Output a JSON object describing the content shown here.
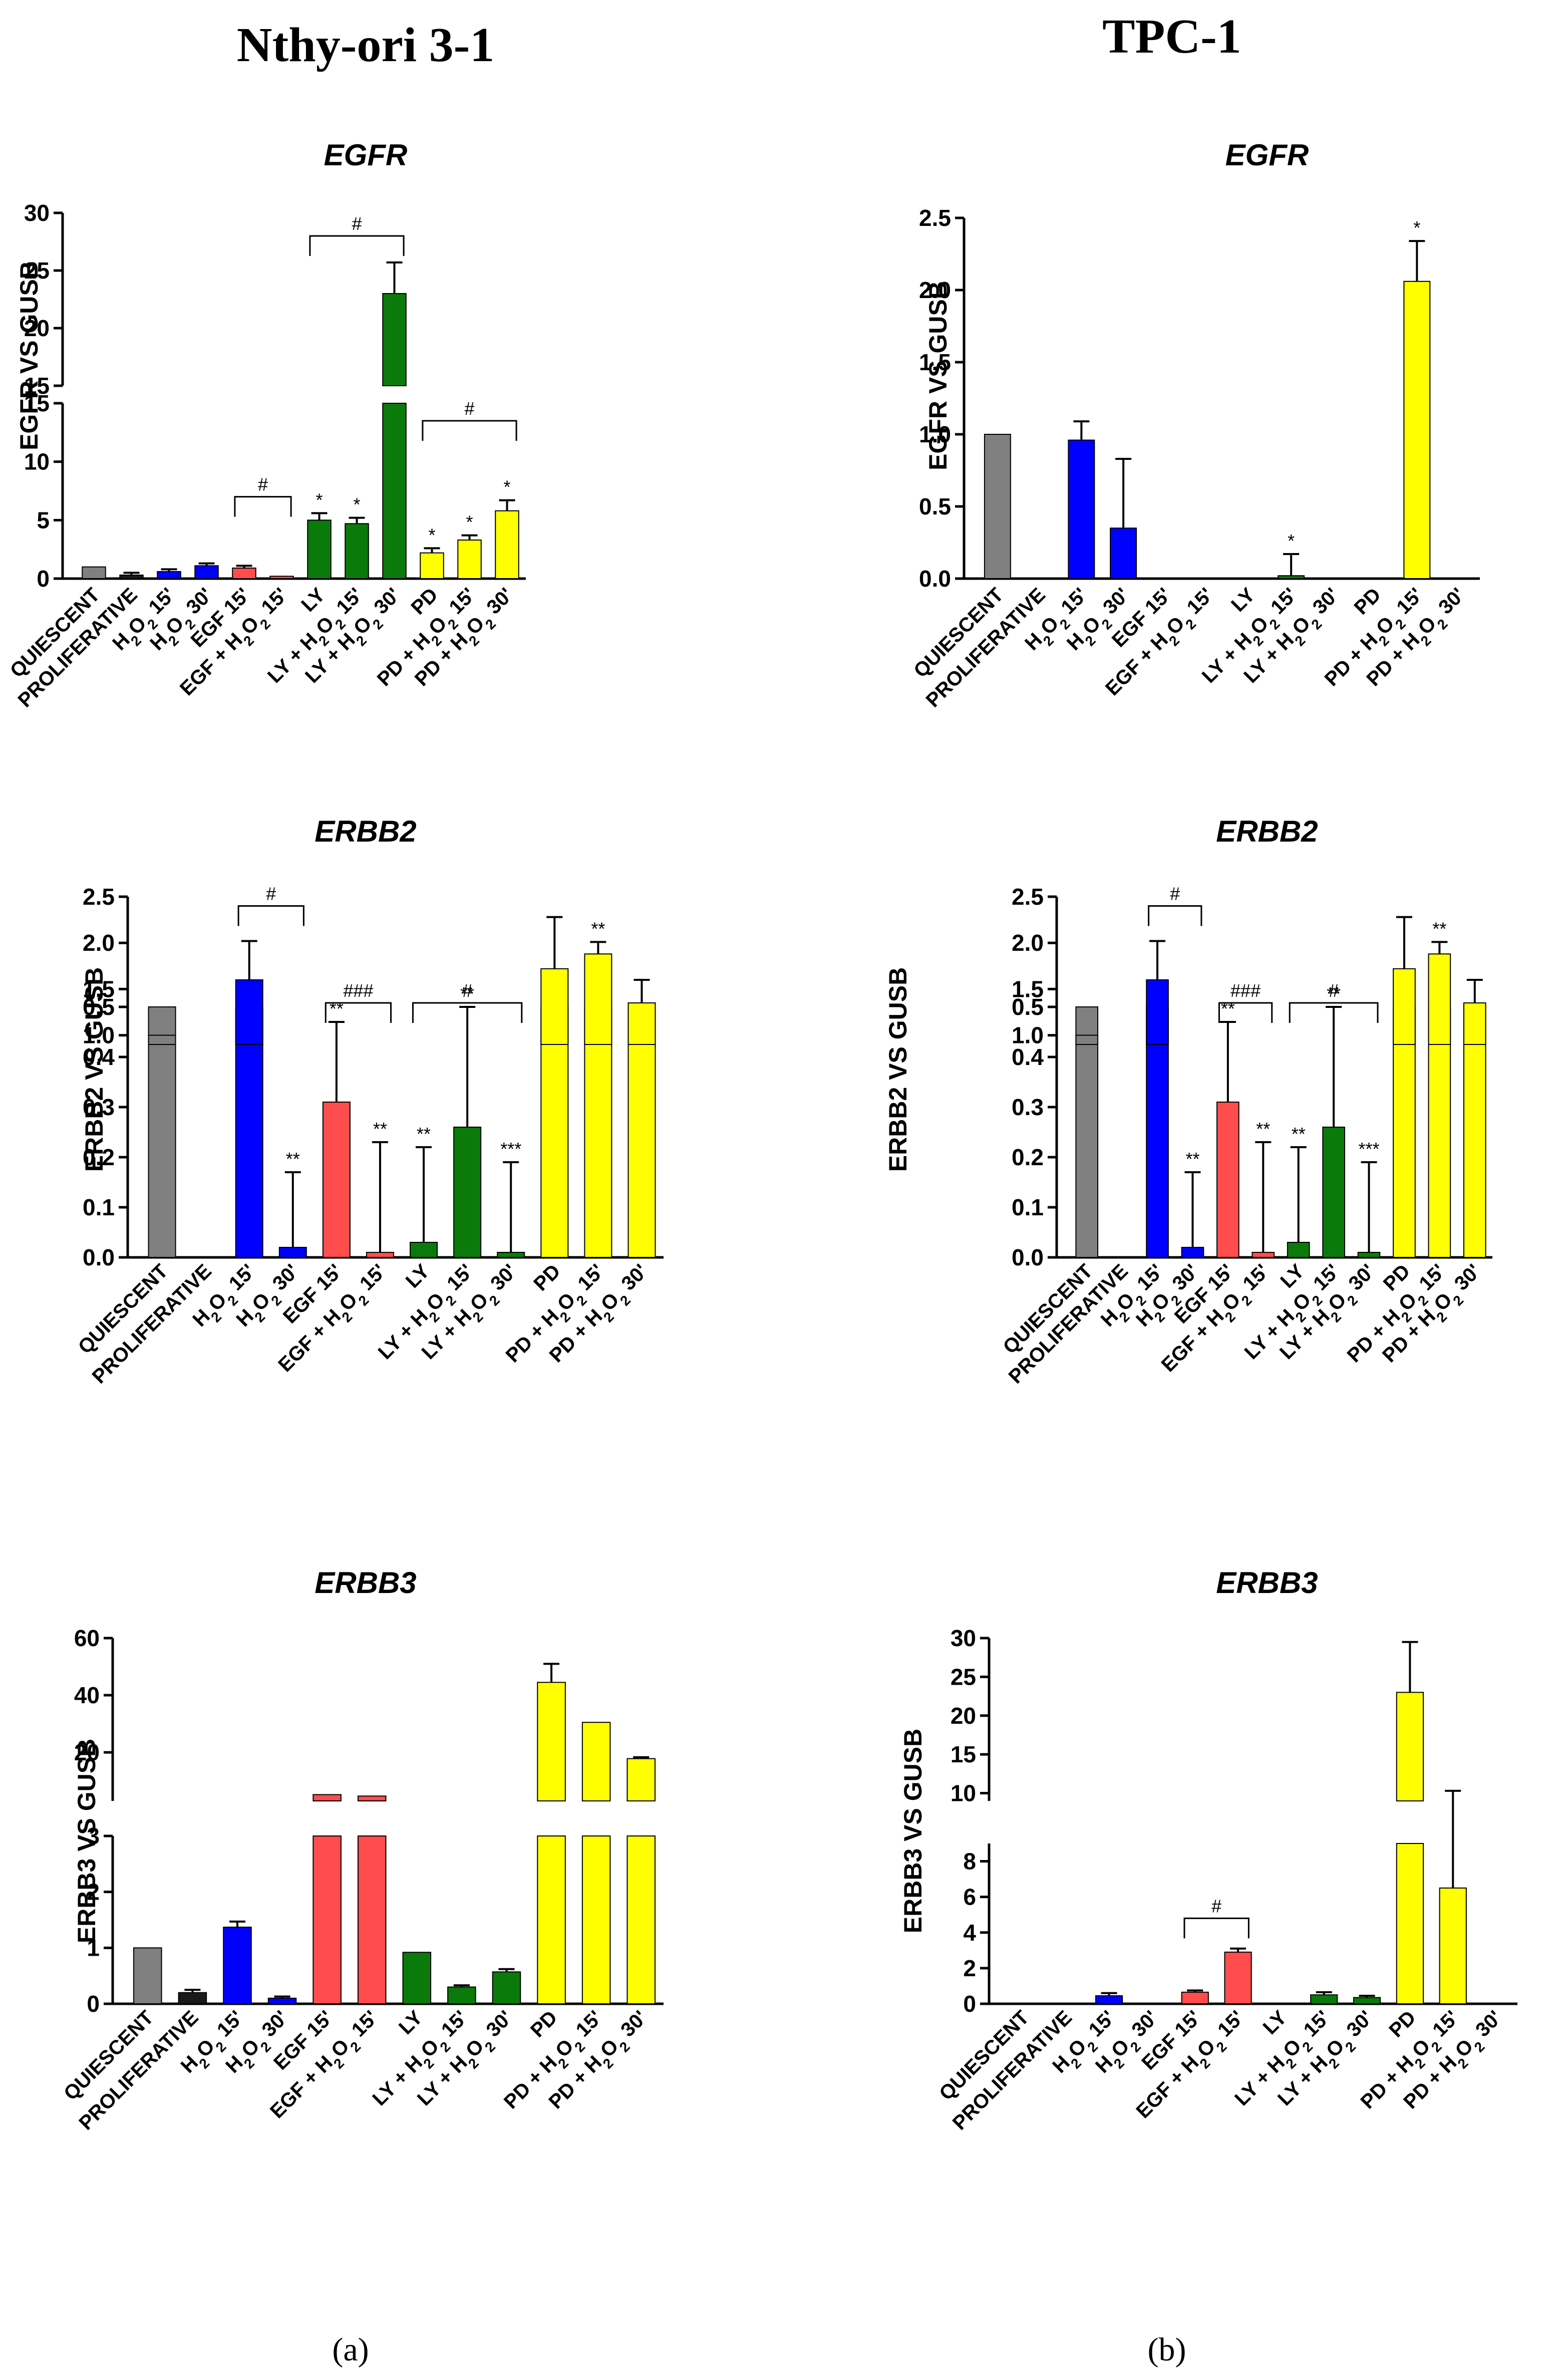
{
  "figure": {
    "columns": [
      "Nthy-ori 3-1",
      "TPC-1"
    ],
    "sublabels": [
      "(a)",
      "(b)"
    ]
  },
  "colors": {
    "gray": "#808080",
    "black": "#1a1a1a",
    "blue": "#0000ff",
    "red": "#ff4d4d",
    "green": "#0a7a0a",
    "yellow": "#ffff00"
  },
  "chart_data": [
    {
      "type": "bar",
      "title": "EGFR",
      "ylabel": "EGFR VS GUSB",
      "column": "Nthy-ori 3-1",
      "categories": [
        "QUIESCENT",
        "PROLIFERATIVE",
        "H2O2 15'",
        "H2O2 30'",
        "EGF 15'",
        "EGF + H2O2 15'",
        "LY",
        "LY + H2O2 15'",
        "LY + H2O2 30'",
        "PD",
        "PD + H2O2 15'",
        "PD + H2O2 30'"
      ],
      "values": [
        1.0,
        0.3,
        0.6,
        1.1,
        0.9,
        0.2,
        5.0,
        4.7,
        23.0,
        2.2,
        3.3,
        5.8
      ],
      "errors": [
        0,
        0.2,
        0.2,
        0.2,
        0.2,
        0,
        0.6,
        0.5,
        2.7,
        0.4,
        0.4,
        0.9
      ],
      "colors": [
        "gray",
        "black",
        "blue",
        "blue",
        "red",
        "red",
        "green",
        "green",
        "green",
        "yellow",
        "yellow",
        "yellow"
      ],
      "stars": [
        "",
        "",
        "",
        "",
        "",
        "",
        "*",
        "*",
        "",
        "*",
        "*",
        "*"
      ],
      "brackets": [
        {
          "from": 4,
          "to": 5,
          "label": "#",
          "y": 7
        },
        {
          "from": 6,
          "to": 8,
          "label": "#",
          "y": 28
        },
        {
          "from": 9,
          "to": 11,
          "label": "#",
          "y": 13.5
        }
      ],
      "axis_break": {
        "lower": [
          0,
          15
        ],
        "upper": [
          15,
          30
        ]
      },
      "yticks_lower": [
        "0",
        "5",
        "10",
        "15"
      ],
      "yticks_upper": [
        "15",
        "20",
        "25",
        "30"
      ]
    },
    {
      "type": "bar",
      "title": "EGFR",
      "ylabel": "EGFR VS GUSB",
      "column": "TPC-1",
      "categories": [
        "QUIESCENT",
        "PROLIFERATIVE",
        "H2O2 15'",
        "H2O2 30'",
        "EGF 15'",
        "EGF + H2O2 15'",
        "LY",
        "LY + H2O2 15'",
        "LY + H2O2 30'",
        "PD",
        "PD + H2O2 15'",
        "PD + H2O2 30'"
      ],
      "values": [
        1.0,
        0,
        0.96,
        0.35,
        0,
        0,
        0,
        0.02,
        0,
        0,
        2.06,
        0
      ],
      "errors": [
        0,
        0,
        0.13,
        0.48,
        0,
        0,
        0,
        0.15,
        0,
        0,
        0.28,
        0
      ],
      "colors": [
        "gray",
        "black",
        "blue",
        "blue",
        "red",
        "red",
        "green",
        "green",
        "green",
        "yellow",
        "yellow",
        "yellow"
      ],
      "stars": [
        "",
        "",
        "",
        "",
        "",
        "",
        "",
        "*",
        "",
        "",
        "*",
        ""
      ],
      "brackets": [],
      "ylim": [
        0,
        2.5
      ],
      "yticks": [
        "0.0",
        "0.5",
        "1.0",
        "1.5",
        "2.0",
        "2.5"
      ]
    },
    {
      "type": "bar",
      "title": "ERBB2",
      "ylabel": "ERBB2 VS GUSB",
      "column": "Nthy-ori 3-1",
      "categories": [
        "QUIESCENT",
        "PROLIFERATIVE",
        "H2O2 15'",
        "H2O2 30'",
        "EGF 15'",
        "EGF + H2O2 15'",
        "LY",
        "LY + H2O2 15'",
        "LY + H2O2 30'",
        "PD",
        "PD + H2O2 15'",
        "PD + H2O2 30'"
      ],
      "values": [
        1.0,
        0,
        1.6,
        0.02,
        0.31,
        0.01,
        0.03,
        0.26,
        0.01,
        1.72,
        1.88,
        1.35
      ],
      "errors": [
        0,
        0,
        0.42,
        0.15,
        0.16,
        0.22,
        0.19,
        0.24,
        0.18,
        0.56,
        0.13,
        0.25
      ],
      "colors": [
        "gray",
        "black",
        "blue",
        "blue",
        "red",
        "red",
        "green",
        "green",
        "green",
        "yellow",
        "yellow",
        "yellow"
      ],
      "stars": [
        "",
        "",
        "",
        "**",
        "**",
        "**",
        "**",
        "**",
        "***",
        "",
        "**",
        ""
      ],
      "brackets": [
        {
          "from": 2,
          "to": 3,
          "label": "#",
          "y": 2.4
        },
        {
          "from": 4,
          "to": 5,
          "label": "###",
          "y": 1.35
        },
        {
          "from": 6,
          "to": 8,
          "label": "#",
          "y": 1.35
        }
      ],
      "axis_break": {
        "lower": [
          0,
          0.5
        ],
        "upper": [
          0.9,
          2.5
        ]
      },
      "yticks_lower": [
        "0.0",
        "0.1",
        "0.2",
        "0.3",
        "0.4",
        "0.5"
      ],
      "yticks_upper": [
        "1.0",
        "1.5",
        "2.0",
        "2.5"
      ]
    },
    {
      "type": "bar",
      "title": "ERBB2",
      "ylabel": "ERBB2 VS GUSB",
      "column": "TPC-1",
      "categories": [
        "QUIESCENT",
        "PROLIFERATIVE",
        "H2O2 15'",
        "H2O2 30'",
        "EGF 15'",
        "EGF + H2O2 15'",
        "LY",
        "LY + H2O2 15'",
        "LY + H2O2 30'",
        "PD",
        "PD + H2O2 15'",
        "PD + H2O2 30'"
      ],
      "values": [
        1.0,
        0,
        1.6,
        0.02,
        0.31,
        0.01,
        0.03,
        0.26,
        0.01,
        1.72,
        1.88,
        1.35
      ],
      "errors": [
        0,
        0,
        0.42,
        0.15,
        0.16,
        0.22,
        0.19,
        0.24,
        0.18,
        0.56,
        0.13,
        0.25
      ],
      "colors": [
        "gray",
        "black",
        "blue",
        "blue",
        "red",
        "red",
        "green",
        "green",
        "green",
        "yellow",
        "yellow",
        "yellow"
      ],
      "stars": [
        "",
        "",
        "",
        "**",
        "**",
        "**",
        "**",
        "**",
        "***",
        "",
        "**",
        ""
      ],
      "brackets": [
        {
          "from": 2,
          "to": 3,
          "label": "#",
          "y": 2.4
        },
        {
          "from": 4,
          "to": 5,
          "label": "###",
          "y": 1.35
        },
        {
          "from": 6,
          "to": 8,
          "label": "#",
          "y": 1.35
        }
      ],
      "axis_break": {
        "lower": [
          0,
          0.5
        ],
        "upper": [
          0.9,
          2.5
        ]
      },
      "yticks_lower": [
        "0.0",
        "0.1",
        "0.2",
        "0.3",
        "0.4",
        "0.5"
      ],
      "yticks_upper": [
        "1.0",
        "1.5",
        "2.0",
        "2.5"
      ]
    },
    {
      "type": "bar",
      "title": "ERBB3",
      "ylabel": "ERBB3 VS GUSB",
      "column": "Nthy-ori 3-1",
      "categories": [
        "QUIESCENT",
        "PROLIFERATIVE",
        "H2O2 15'",
        "H2O2 30'",
        "EGF 15'",
        "EGF + H2O2 15'",
        "LY",
        "LY + H2O2 15'",
        "LY + H2O2 30'",
        "PD",
        "PD + H2O2 15'",
        "PD + H2O2 30'"
      ],
      "values": [
        1.0,
        0.2,
        1.37,
        0.1,
        5.2,
        4.7,
        0.92,
        0.3,
        0.57,
        44.5,
        30.5,
        17.8
      ],
      "errors": [
        0,
        0.05,
        0.1,
        0.03,
        0,
        0,
        0,
        0.03,
        0.05,
        6.5,
        0,
        0.5
      ],
      "colors": [
        "gray",
        "black",
        "blue",
        "blue",
        "red",
        "red",
        "green",
        "green",
        "green",
        "yellow",
        "yellow",
        "yellow"
      ],
      "stars": [
        "",
        "",
        "",
        "",
        "",
        "",
        "",
        "",
        "",
        "",
        "",
        ""
      ],
      "brackets": [],
      "axis_break": {
        "lower": [
          0,
          3
        ],
        "upper": [
          3,
          60
        ]
      },
      "yticks_lower": [
        "0",
        "1",
        "2",
        "3"
      ],
      "yticks_upper": [
        "20",
        "40",
        "60"
      ]
    },
    {
      "type": "bar",
      "title": "ERBB3",
      "ylabel": "ERBB3 VS GUSB",
      "column": "TPC-1",
      "categories": [
        "QUIESCENT",
        "PROLIFERATIVE",
        "H2O2 15'",
        "H2O2 30'",
        "EGF 15'",
        "EGF + H2O2 15'",
        "LY",
        "LY + H2O2 15'",
        "LY + H2O2 30'",
        "PD",
        "PD + H2O2 15'",
        "PD + H2O2 30'"
      ],
      "values": [
        0,
        0,
        0.45,
        0,
        0.65,
        2.9,
        0,
        0.5,
        0.35,
        23.0,
        6.5,
        0
      ],
      "errors": [
        0,
        0,
        0.15,
        0,
        0.1,
        0.2,
        0,
        0.15,
        0.1,
        6.5,
        3.8,
        0
      ],
      "colors": [
        "gray",
        "black",
        "blue",
        "blue",
        "red",
        "red",
        "green",
        "green",
        "green",
        "yellow",
        "yellow",
        "yellow"
      ],
      "stars": [
        "",
        "",
        "",
        "",
        "",
        "",
        "",
        "",
        "",
        "",
        "",
        ""
      ],
      "brackets": [
        {
          "from": 4,
          "to": 5,
          "label": "#",
          "y": 4.8
        }
      ],
      "axis_break": {
        "lower": [
          0,
          9
        ],
        "upper": [
          9,
          30
        ]
      },
      "yticks_lower": [
        "0",
        "2",
        "4",
        "6",
        "8"
      ],
      "yticks_upper": [
        "10",
        "15",
        "20",
        "25",
        "30"
      ]
    }
  ]
}
